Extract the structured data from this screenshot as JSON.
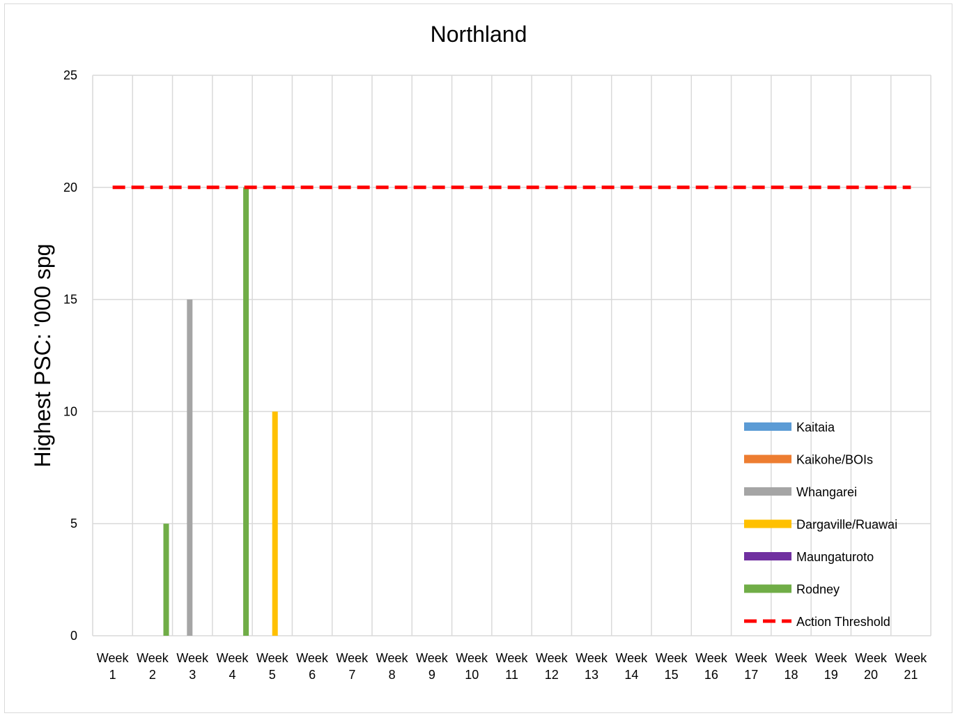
{
  "chart_data": {
    "type": "bar",
    "title": "Northland",
    "xlabel": "",
    "ylabel": "Highest PSC: '000 spg",
    "ylim": [
      0,
      25
    ],
    "yticks": [
      0,
      5,
      10,
      15,
      20,
      25
    ],
    "grid": true,
    "legend_position": "right",
    "categories": [
      [
        "Week",
        "1"
      ],
      [
        "Week",
        "2"
      ],
      [
        "Week",
        "3"
      ],
      [
        "Week",
        "4"
      ],
      [
        "Week",
        "5"
      ],
      [
        "Week",
        "6"
      ],
      [
        "Week",
        "7"
      ],
      [
        "Week",
        "8"
      ],
      [
        "Week",
        "9"
      ],
      [
        "Week",
        "10"
      ],
      [
        "Week",
        "11"
      ],
      [
        "Week",
        "12"
      ],
      [
        "Week",
        "13"
      ],
      [
        "Week",
        "14"
      ],
      [
        "Week",
        "15"
      ],
      [
        "Week",
        "16"
      ],
      [
        "Week",
        "17"
      ],
      [
        "Week",
        "18"
      ],
      [
        "Week",
        "19"
      ],
      [
        "Week",
        "20"
      ],
      [
        "Week",
        "21"
      ]
    ],
    "series": [
      {
        "name": "Kaitaia",
        "color": "#5b9bd5",
        "values": [
          0,
          0,
          0,
          0,
          0,
          0,
          0,
          0,
          0,
          0,
          0,
          0,
          0,
          0,
          0,
          0,
          0,
          0,
          0,
          0,
          0
        ]
      },
      {
        "name": "Kaikohe/BOIs",
        "color": "#ed7d31",
        "values": [
          0,
          0,
          0,
          0,
          0,
          0,
          0,
          0,
          0,
          0,
          0,
          0,
          0,
          0,
          0,
          0,
          0,
          0,
          0,
          0,
          0
        ]
      },
      {
        "name": "Whangarei",
        "color": "#a5a5a5",
        "values": [
          0,
          0,
          15,
          0,
          0,
          0,
          0,
          0,
          0,
          0,
          0,
          0,
          0,
          0,
          0,
          0,
          0,
          0,
          0,
          0,
          0
        ]
      },
      {
        "name": "Dargaville/Ruawai",
        "color": "#ffc000",
        "values": [
          0,
          0,
          0,
          0,
          10,
          0,
          0,
          0,
          0,
          0,
          0,
          0,
          0,
          0,
          0,
          0,
          0,
          0,
          0,
          0,
          0
        ]
      },
      {
        "name": "Maungaturoto",
        "color": "#7030a0",
        "values": [
          0,
          0,
          0,
          0,
          0,
          0,
          0,
          0,
          0,
          0,
          0,
          0,
          0,
          0,
          0,
          0,
          0,
          0,
          0,
          0,
          0
        ]
      },
      {
        "name": "Rodney",
        "color": "#70ad47",
        "values": [
          0,
          5,
          0,
          20,
          0,
          0,
          0,
          0,
          0,
          0,
          0,
          0,
          0,
          0,
          0,
          0,
          0,
          0,
          0,
          0,
          0
        ]
      }
    ],
    "threshold": {
      "name": "Action Threshold",
      "value": 20,
      "color": "#ff0000",
      "style": "dashed"
    }
  }
}
